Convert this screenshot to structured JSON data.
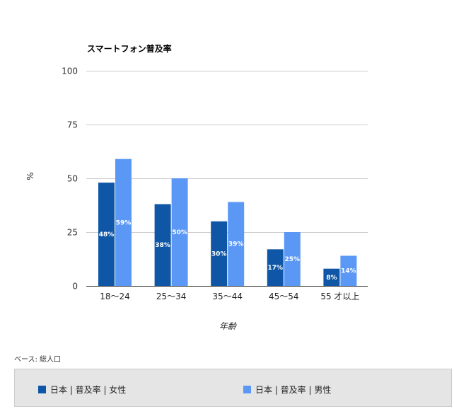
{
  "chart_data": {
    "type": "bar",
    "title": "スマートフォン普及率",
    "xlabel": "年齢",
    "ylabel": "%",
    "ylim": [
      0,
      100
    ],
    "yticks": [
      0,
      25,
      50,
      75,
      100
    ],
    "grid": true,
    "legend_position": "bottom",
    "categories": [
      "18〜24",
      "25〜34",
      "35〜44",
      "45〜54",
      "55 才以上"
    ],
    "series": [
      {
        "name": "日本 | 普及率 | 女性",
        "color": "#0f57a6",
        "values": [
          48,
          38,
          30,
          17,
          8
        ],
        "labels": [
          "48%",
          "38%",
          "30%",
          "17%",
          "8%"
        ]
      },
      {
        "name": "日本 | 普及率 | 男性",
        "color": "#5b98f5",
        "values": [
          59,
          50,
          39,
          25,
          14
        ],
        "labels": [
          "59%",
          "50%",
          "39%",
          "25%",
          "14%"
        ]
      }
    ]
  },
  "source_note": "ベース: 総人口"
}
